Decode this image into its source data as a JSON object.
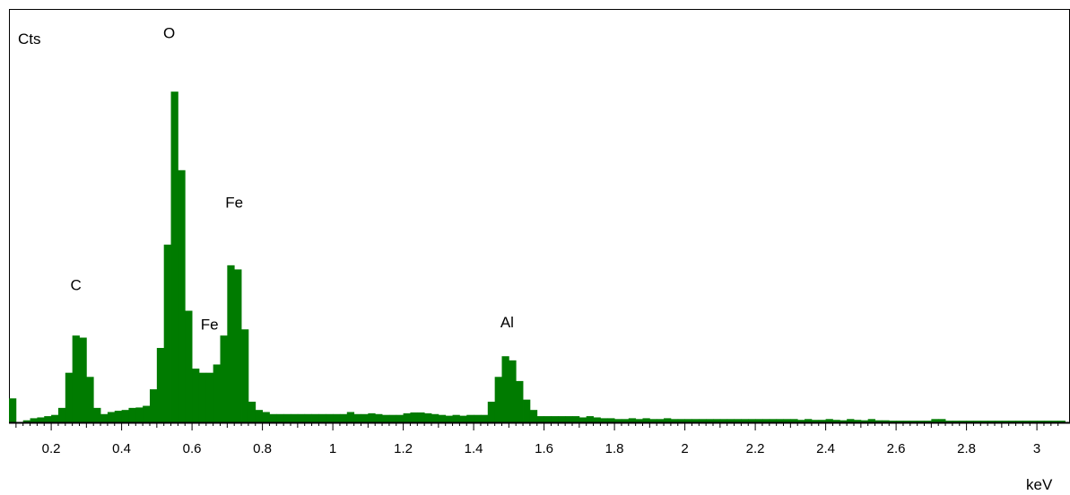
{
  "chart_data": {
    "type": "bar",
    "ylabel": "Cts",
    "xlabel": "keV",
    "xlim": [
      0.08,
      3.08
    ],
    "ylim": [
      0,
      1.0
    ],
    "grid": false,
    "bar_color": "#007b00",
    "x_ticks": [
      "0.2",
      "0.4",
      "0.6",
      "0.8",
      "1",
      "1.2",
      "1.4",
      "1.6",
      "1.8",
      "2",
      "2.2",
      "2.4",
      "2.6",
      "2.8",
      "3"
    ],
    "x_tick_values": [
      0.2,
      0.4,
      0.6,
      0.8,
      1.0,
      1.2,
      1.4,
      1.6,
      1.8,
      2.0,
      2.2,
      2.4,
      2.6,
      2.8,
      3.0
    ],
    "bin_width": 0.02,
    "bins": [
      [
        0.08,
        0.058
      ],
      [
        0.1,
        0.0
      ],
      [
        0.12,
        0.005
      ],
      [
        0.14,
        0.01
      ],
      [
        0.16,
        0.012
      ],
      [
        0.18,
        0.015
      ],
      [
        0.2,
        0.018
      ],
      [
        0.22,
        0.035
      ],
      [
        0.24,
        0.12
      ],
      [
        0.26,
        0.21
      ],
      [
        0.28,
        0.205
      ],
      [
        0.3,
        0.11
      ],
      [
        0.32,
        0.035
      ],
      [
        0.34,
        0.02
      ],
      [
        0.36,
        0.025
      ],
      [
        0.38,
        0.028
      ],
      [
        0.4,
        0.03
      ],
      [
        0.42,
        0.035
      ],
      [
        0.44,
        0.036
      ],
      [
        0.46,
        0.04
      ],
      [
        0.48,
        0.08
      ],
      [
        0.5,
        0.18
      ],
      [
        0.52,
        0.43
      ],
      [
        0.54,
        0.8
      ],
      [
        0.56,
        0.61
      ],
      [
        0.58,
        0.27
      ],
      [
        0.6,
        0.13
      ],
      [
        0.62,
        0.12
      ],
      [
        0.64,
        0.12
      ],
      [
        0.66,
        0.14
      ],
      [
        0.68,
        0.21
      ],
      [
        0.7,
        0.38
      ],
      [
        0.72,
        0.37
      ],
      [
        0.74,
        0.225
      ],
      [
        0.76,
        0.05
      ],
      [
        0.78,
        0.03
      ],
      [
        0.8,
        0.025
      ],
      [
        0.82,
        0.02
      ],
      [
        0.84,
        0.02
      ],
      [
        0.86,
        0.02
      ],
      [
        0.88,
        0.02
      ],
      [
        0.9,
        0.02
      ],
      [
        0.92,
        0.02
      ],
      [
        0.94,
        0.02
      ],
      [
        0.96,
        0.02
      ],
      [
        0.98,
        0.02
      ],
      [
        1.0,
        0.02
      ],
      [
        1.02,
        0.02
      ],
      [
        1.04,
        0.025
      ],
      [
        1.06,
        0.02
      ],
      [
        1.08,
        0.02
      ],
      [
        1.1,
        0.022
      ],
      [
        1.12,
        0.02
      ],
      [
        1.14,
        0.018
      ],
      [
        1.16,
        0.018
      ],
      [
        1.18,
        0.018
      ],
      [
        1.2,
        0.022
      ],
      [
        1.22,
        0.024
      ],
      [
        1.24,
        0.024
      ],
      [
        1.26,
        0.022
      ],
      [
        1.28,
        0.02
      ],
      [
        1.3,
        0.018
      ],
      [
        1.32,
        0.016
      ],
      [
        1.34,
        0.018
      ],
      [
        1.36,
        0.016
      ],
      [
        1.38,
        0.018
      ],
      [
        1.4,
        0.018
      ],
      [
        1.42,
        0.018
      ],
      [
        1.44,
        0.05
      ],
      [
        1.46,
        0.11
      ],
      [
        1.48,
        0.16
      ],
      [
        1.5,
        0.15
      ],
      [
        1.52,
        0.1
      ],
      [
        1.54,
        0.055
      ],
      [
        1.56,
        0.03
      ],
      [
        1.58,
        0.015
      ],
      [
        1.6,
        0.015
      ],
      [
        1.62,
        0.015
      ],
      [
        1.64,
        0.015
      ],
      [
        1.66,
        0.015
      ],
      [
        1.68,
        0.015
      ],
      [
        1.7,
        0.012
      ],
      [
        1.72,
        0.015
      ],
      [
        1.74,
        0.012
      ],
      [
        1.76,
        0.01
      ],
      [
        1.78,
        0.01
      ],
      [
        1.8,
        0.008
      ],
      [
        1.82,
        0.008
      ],
      [
        1.84,
        0.01
      ],
      [
        1.86,
        0.008
      ],
      [
        1.88,
        0.01
      ],
      [
        1.9,
        0.008
      ],
      [
        1.92,
        0.008
      ],
      [
        1.94,
        0.01
      ],
      [
        1.96,
        0.008
      ],
      [
        1.98,
        0.008
      ],
      [
        2.0,
        0.008
      ],
      [
        2.02,
        0.008
      ],
      [
        2.04,
        0.008
      ],
      [
        2.06,
        0.008
      ],
      [
        2.08,
        0.008
      ],
      [
        2.1,
        0.008
      ],
      [
        2.12,
        0.008
      ],
      [
        2.14,
        0.008
      ],
      [
        2.16,
        0.008
      ],
      [
        2.18,
        0.008
      ],
      [
        2.2,
        0.008
      ],
      [
        2.22,
        0.008
      ],
      [
        2.24,
        0.008
      ],
      [
        2.26,
        0.008
      ],
      [
        2.28,
        0.008
      ],
      [
        2.3,
        0.008
      ],
      [
        2.32,
        0.006
      ],
      [
        2.34,
        0.008
      ],
      [
        2.36,
        0.006
      ],
      [
        2.38,
        0.006
      ],
      [
        2.4,
        0.008
      ],
      [
        2.42,
        0.006
      ],
      [
        2.44,
        0.005
      ],
      [
        2.46,
        0.008
      ],
      [
        2.48,
        0.006
      ],
      [
        2.5,
        0.005
      ],
      [
        2.52,
        0.008
      ],
      [
        2.54,
        0.005
      ],
      [
        2.56,
        0.005
      ],
      [
        2.58,
        0.004
      ],
      [
        2.6,
        0.004
      ],
      [
        2.62,
        0.004
      ],
      [
        2.64,
        0.004
      ],
      [
        2.66,
        0.004
      ],
      [
        2.68,
        0.004
      ],
      [
        2.7,
        0.008
      ],
      [
        2.72,
        0.008
      ],
      [
        2.74,
        0.004
      ],
      [
        2.76,
        0.004
      ],
      [
        2.78,
        0.004
      ],
      [
        2.8,
        0.004
      ],
      [
        2.82,
        0.004
      ],
      [
        2.84,
        0.004
      ],
      [
        2.86,
        0.004
      ],
      [
        2.88,
        0.004
      ],
      [
        2.9,
        0.004
      ],
      [
        2.92,
        0.004
      ],
      [
        2.94,
        0.004
      ],
      [
        2.96,
        0.004
      ],
      [
        2.98,
        0.004
      ],
      [
        3.0,
        0.004
      ],
      [
        3.02,
        0.004
      ],
      [
        3.04,
        0.004
      ],
      [
        3.06,
        0.004
      ]
    ],
    "annotations": [
      {
        "text": "O",
        "x": 0.535,
        "y": 0.93
      },
      {
        "text": "Fe",
        "x": 0.72,
        "y": 0.52
      },
      {
        "text": "C",
        "x": 0.27,
        "y": 0.32
      },
      {
        "text": "Fe",
        "x": 0.65,
        "y": 0.225
      },
      {
        "text": "Al",
        "x": 1.495,
        "y": 0.23
      }
    ]
  }
}
